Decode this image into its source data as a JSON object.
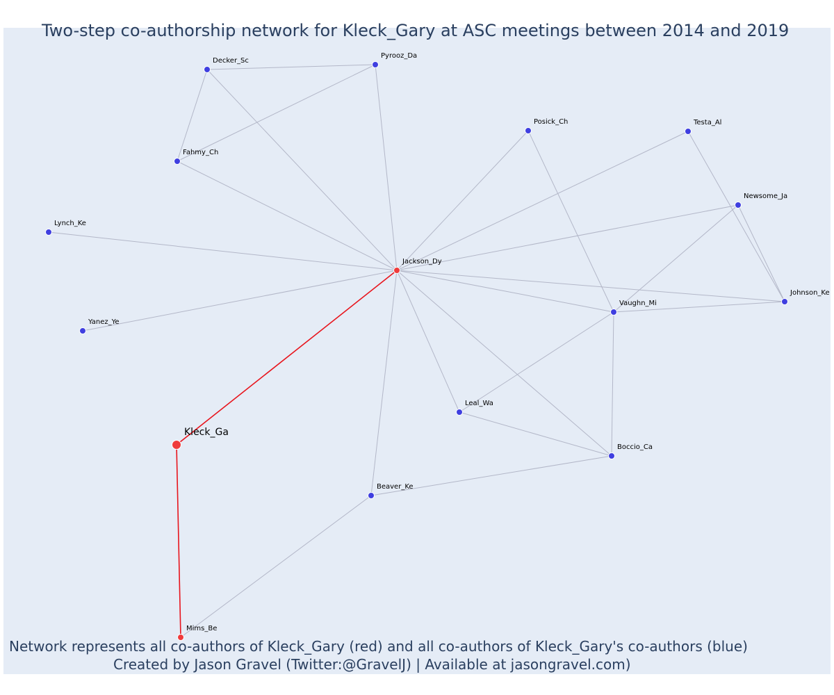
{
  "title": "Two-step co-authorship network for Kleck_Gary at ASC meetings between 2014 and 2019",
  "captions": {
    "line1": "Network represents all co-authors of Kleck_Gary (red) and all co-authors of Kleck_Gary's co-authors (blue)",
    "line2": "Created by Jason Gravel (Twitter:@GravelJ) | Available at jasongravel.com)"
  },
  "colors": {
    "first_step": "#ef3b3b",
    "second_step": "#3f3fe0",
    "edge_default": "#b3b7c8",
    "edge_highlight": "#e8141c",
    "plot_background": "#e5ecf6",
    "text": "#2a3f5f"
  },
  "nodes": [
    {
      "id": "Kleck_Ga",
      "label": "Kleck_Ga",
      "group": "ego"
    },
    {
      "id": "Jackson_Dy",
      "label": "Jackson_Dy",
      "group": "first_step"
    },
    {
      "id": "Mims_Be",
      "label": "Mims_Be",
      "group": "first_step"
    },
    {
      "id": "Decker_Sc",
      "label": "Decker_Sc",
      "group": "second_step"
    },
    {
      "id": "Pyrooz_Da",
      "label": "Pyrooz_Da",
      "group": "second_step"
    },
    {
      "id": "Fahmy_Ch",
      "label": "Fahmy_Ch",
      "group": "second_step"
    },
    {
      "id": "Posick_Ch",
      "label": "Posick_Ch",
      "group": "second_step"
    },
    {
      "id": "Testa_Al",
      "label": "Testa_Al",
      "group": "second_step"
    },
    {
      "id": "Newsome_Ja",
      "label": "Newsome_Ja",
      "group": "second_step"
    },
    {
      "id": "Lynch_Ke",
      "label": "Lynch_Ke",
      "group": "second_step"
    },
    {
      "id": "Johnson_Ke",
      "label": "Johnson_Ke",
      "group": "second_step"
    },
    {
      "id": "Vaughn_Mi",
      "label": "Vaughn_Mi",
      "group": "second_step"
    },
    {
      "id": "Yanez_Ye",
      "label": "Yanez_Ye",
      "group": "second_step"
    },
    {
      "id": "Leal_Wa",
      "label": "Leal_Wa",
      "group": "second_step"
    },
    {
      "id": "Boccio_Ca",
      "label": "Boccio_Ca",
      "group": "second_step"
    },
    {
      "id": "Beaver_Ke",
      "label": "Beaver_Ke",
      "group": "second_step"
    }
  ],
  "edges": [
    {
      "source": "Kleck_Ga",
      "target": "Jackson_Dy",
      "highlight": true
    },
    {
      "source": "Kleck_Ga",
      "target": "Mims_Be",
      "highlight": true
    },
    {
      "source": "Decker_Sc",
      "target": "Pyrooz_Da"
    },
    {
      "source": "Decker_Sc",
      "target": "Fahmy_Ch"
    },
    {
      "source": "Decker_Sc",
      "target": "Jackson_Dy"
    },
    {
      "source": "Pyrooz_Da",
      "target": "Fahmy_Ch"
    },
    {
      "source": "Pyrooz_Da",
      "target": "Jackson_Dy"
    },
    {
      "source": "Fahmy_Ch",
      "target": "Jackson_Dy"
    },
    {
      "source": "Lynch_Ke",
      "target": "Jackson_Dy"
    },
    {
      "source": "Yanez_Ye",
      "target": "Jackson_Dy"
    },
    {
      "source": "Posick_Ch",
      "target": "Jackson_Dy"
    },
    {
      "source": "Posick_Ch",
      "target": "Vaughn_Mi"
    },
    {
      "source": "Testa_Al",
      "target": "Jackson_Dy"
    },
    {
      "source": "Testa_Al",
      "target": "Johnson_Ke"
    },
    {
      "source": "Newsome_Ja",
      "target": "Jackson_Dy"
    },
    {
      "source": "Newsome_Ja",
      "target": "Vaughn_Mi"
    },
    {
      "source": "Newsome_Ja",
      "target": "Johnson_Ke"
    },
    {
      "source": "Jackson_Dy",
      "target": "Johnson_Ke"
    },
    {
      "source": "Jackson_Dy",
      "target": "Vaughn_Mi"
    },
    {
      "source": "Jackson_Dy",
      "target": "Leal_Wa"
    },
    {
      "source": "Jackson_Dy",
      "target": "Boccio_Ca"
    },
    {
      "source": "Jackson_Dy",
      "target": "Beaver_Ke"
    },
    {
      "source": "Vaughn_Mi",
      "target": "Johnson_Ke"
    },
    {
      "source": "Vaughn_Mi",
      "target": "Leal_Wa"
    },
    {
      "source": "Vaughn_Mi",
      "target": "Boccio_Ca"
    },
    {
      "source": "Leal_Wa",
      "target": "Boccio_Ca"
    },
    {
      "source": "Boccio_Ca",
      "target": "Beaver_Ke"
    },
    {
      "source": "Beaver_Ke",
      "target": "Mims_Be"
    }
  ]
}
